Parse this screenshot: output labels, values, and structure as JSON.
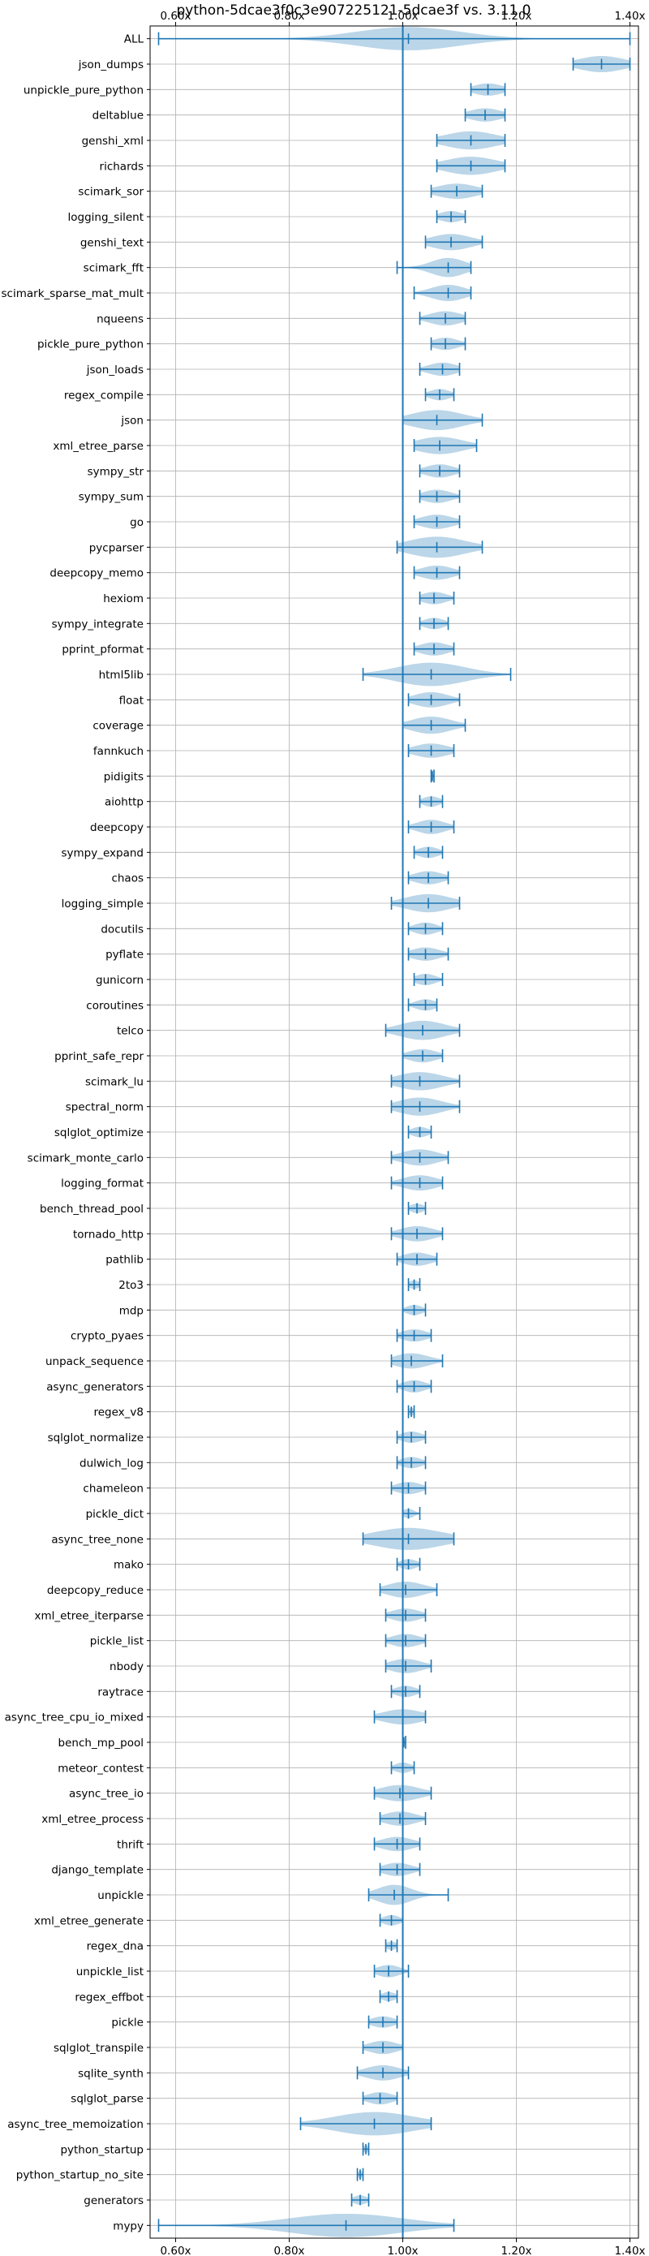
{
  "chart_data": {
    "type": "violin",
    "title": "python-5dcae3f0c3e907225121-5dcae3f vs. 3.11.0",
    "xlim": [
      0.555,
      1.415
    ],
    "xticks": [
      {
        "value": 0.6,
        "label": "0.60x"
      },
      {
        "value": 0.8,
        "label": "0.80x"
      },
      {
        "value": 1.0,
        "label": "1.00x"
      },
      {
        "value": 1.2,
        "label": "1.20x"
      },
      {
        "value": 1.4,
        "label": "1.40x"
      }
    ],
    "reference_line": 1.0,
    "grid": true,
    "colors": {
      "violin": "#1f77b4",
      "violin_fill_opacity": 0.3,
      "axis": "#000000",
      "grid": "#b0b0b0"
    },
    "categories": [
      {
        "name": "ALL",
        "min": 0.57,
        "max": 1.4,
        "median": 1.01,
        "spread": 0.09
      },
      {
        "name": "json_dumps",
        "min": 1.3,
        "max": 1.4,
        "median": 1.35,
        "spread": 0.04
      },
      {
        "name": "unpickle_pure_python",
        "min": 1.12,
        "max": 1.18,
        "median": 1.15,
        "spread": 0.025
      },
      {
        "name": "deltablue",
        "min": 1.11,
        "max": 1.18,
        "median": 1.145,
        "spread": 0.028
      },
      {
        "name": "genshi_xml",
        "min": 1.06,
        "max": 1.18,
        "median": 1.12,
        "spread": 0.045
      },
      {
        "name": "richards",
        "min": 1.06,
        "max": 1.18,
        "median": 1.12,
        "spread": 0.045
      },
      {
        "name": "scimark_sor",
        "min": 1.05,
        "max": 1.14,
        "median": 1.095,
        "spread": 0.035
      },
      {
        "name": "logging_silent",
        "min": 1.06,
        "max": 1.11,
        "median": 1.085,
        "spread": 0.02
      },
      {
        "name": "genshi_text",
        "min": 1.04,
        "max": 1.14,
        "median": 1.085,
        "spread": 0.035
      },
      {
        "name": "scimark_fft",
        "min": 0.99,
        "max": 1.12,
        "median": 1.08,
        "spread": 0.03
      },
      {
        "name": "scimark_sparse_mat_mult",
        "min": 1.02,
        "max": 1.12,
        "median": 1.08,
        "spread": 0.03
      },
      {
        "name": "nqueens",
        "min": 1.03,
        "max": 1.11,
        "median": 1.075,
        "spread": 0.028
      },
      {
        "name": "pickle_pure_python",
        "min": 1.05,
        "max": 1.11,
        "median": 1.075,
        "spread": 0.022
      },
      {
        "name": "json_loads",
        "min": 1.03,
        "max": 1.1,
        "median": 1.07,
        "spread": 0.025
      },
      {
        "name": "regex_compile",
        "min": 1.04,
        "max": 1.09,
        "median": 1.065,
        "spread": 0.018
      },
      {
        "name": "json",
        "min": 1.0,
        "max": 1.14,
        "median": 1.06,
        "spread": 0.045
      },
      {
        "name": "xml_etree_parse",
        "min": 1.02,
        "max": 1.13,
        "median": 1.065,
        "spread": 0.04
      },
      {
        "name": "sympy_str",
        "min": 1.03,
        "max": 1.1,
        "median": 1.065,
        "spread": 0.025
      },
      {
        "name": "sympy_sum",
        "min": 1.03,
        "max": 1.1,
        "median": 1.06,
        "spread": 0.025
      },
      {
        "name": "go",
        "min": 1.02,
        "max": 1.1,
        "median": 1.06,
        "spread": 0.028
      },
      {
        "name": "pycparser",
        "min": 0.99,
        "max": 1.14,
        "median": 1.06,
        "spread": 0.05
      },
      {
        "name": "deepcopy_memo",
        "min": 1.02,
        "max": 1.1,
        "median": 1.06,
        "spread": 0.028
      },
      {
        "name": "hexiom",
        "min": 1.03,
        "max": 1.09,
        "median": 1.055,
        "spread": 0.022
      },
      {
        "name": "sympy_integrate",
        "min": 1.03,
        "max": 1.08,
        "median": 1.055,
        "spread": 0.018
      },
      {
        "name": "pprint_pformat",
        "min": 1.02,
        "max": 1.09,
        "median": 1.055,
        "spread": 0.025
      },
      {
        "name": "html5lib",
        "min": 0.93,
        "max": 1.19,
        "median": 1.05,
        "spread": 0.06
      },
      {
        "name": "float",
        "min": 1.01,
        "max": 1.1,
        "median": 1.05,
        "spread": 0.03
      },
      {
        "name": "coverage",
        "min": 1.0,
        "max": 1.11,
        "median": 1.05,
        "spread": 0.035
      },
      {
        "name": "fannkuch",
        "min": 1.01,
        "max": 1.09,
        "median": 1.05,
        "spread": 0.03
      },
      {
        "name": "pidigits",
        "min": 1.05,
        "max": 1.055,
        "median": 1.052,
        "spread": 0.004
      },
      {
        "name": "aiohttp",
        "min": 1.03,
        "max": 1.07,
        "median": 1.05,
        "spread": 0.015
      },
      {
        "name": "deepcopy",
        "min": 1.01,
        "max": 1.09,
        "median": 1.05,
        "spread": 0.025
      },
      {
        "name": "sympy_expand",
        "min": 1.02,
        "max": 1.07,
        "median": 1.045,
        "spread": 0.018
      },
      {
        "name": "chaos",
        "min": 1.01,
        "max": 1.08,
        "median": 1.045,
        "spread": 0.025
      },
      {
        "name": "logging_simple",
        "min": 0.98,
        "max": 1.1,
        "median": 1.045,
        "spread": 0.04
      },
      {
        "name": "docutils",
        "min": 1.01,
        "max": 1.07,
        "median": 1.04,
        "spread": 0.02
      },
      {
        "name": "pyflate",
        "min": 1.01,
        "max": 1.08,
        "median": 1.04,
        "spread": 0.025
      },
      {
        "name": "gunicorn",
        "min": 1.02,
        "max": 1.07,
        "median": 1.04,
        "spread": 0.018
      },
      {
        "name": "coroutines",
        "min": 1.01,
        "max": 1.06,
        "median": 1.04,
        "spread": 0.018
      },
      {
        "name": "telco",
        "min": 0.97,
        "max": 1.1,
        "median": 1.035,
        "spread": 0.04
      },
      {
        "name": "pprint_safe_repr",
        "min": 1.0,
        "max": 1.07,
        "median": 1.035,
        "spread": 0.025
      },
      {
        "name": "scimark_lu",
        "min": 0.98,
        "max": 1.1,
        "median": 1.03,
        "spread": 0.04
      },
      {
        "name": "spectral_norm",
        "min": 0.98,
        "max": 1.1,
        "median": 1.03,
        "spread": 0.038
      },
      {
        "name": "sqlglot_optimize",
        "min": 1.01,
        "max": 1.05,
        "median": 1.03,
        "spread": 0.015
      },
      {
        "name": "scimark_monte_carlo",
        "min": 0.98,
        "max": 1.08,
        "median": 1.03,
        "spread": 0.032
      },
      {
        "name": "logging_format",
        "min": 0.98,
        "max": 1.07,
        "median": 1.03,
        "spread": 0.03
      },
      {
        "name": "bench_thread_pool",
        "min": 1.01,
        "max": 1.04,
        "median": 1.025,
        "spread": 0.012
      },
      {
        "name": "tornado_http",
        "min": 0.98,
        "max": 1.07,
        "median": 1.025,
        "spread": 0.03
      },
      {
        "name": "pathlib",
        "min": 0.99,
        "max": 1.06,
        "median": 1.025,
        "spread": 0.025
      },
      {
        "name": "2to3",
        "min": 1.01,
        "max": 1.03,
        "median": 1.02,
        "spread": 0.01
      },
      {
        "name": "mdp",
        "min": 1.0,
        "max": 1.04,
        "median": 1.02,
        "spread": 0.014
      },
      {
        "name": "crypto_pyaes",
        "min": 0.99,
        "max": 1.05,
        "median": 1.02,
        "spread": 0.022
      },
      {
        "name": "unpack_sequence",
        "min": 0.98,
        "max": 1.07,
        "median": 1.015,
        "spread": 0.03
      },
      {
        "name": "async_generators",
        "min": 0.99,
        "max": 1.05,
        "median": 1.02,
        "spread": 0.02
      },
      {
        "name": "regex_v8",
        "min": 1.01,
        "max": 1.02,
        "median": 1.015,
        "spread": 0.008
      },
      {
        "name": "sqlglot_normalize",
        "min": 0.99,
        "max": 1.04,
        "median": 1.015,
        "spread": 0.018
      },
      {
        "name": "dulwich_log",
        "min": 0.99,
        "max": 1.04,
        "median": 1.015,
        "spread": 0.018
      },
      {
        "name": "chameleon",
        "min": 0.98,
        "max": 1.04,
        "median": 1.01,
        "spread": 0.022
      },
      {
        "name": "pickle_dict",
        "min": 1.0,
        "max": 1.03,
        "median": 1.01,
        "spread": 0.01
      },
      {
        "name": "async_tree_none",
        "min": 0.93,
        "max": 1.09,
        "median": 1.01,
        "spread": 0.06
      },
      {
        "name": "mako",
        "min": 0.99,
        "max": 1.03,
        "median": 1.01,
        "spread": 0.015
      },
      {
        "name": "deepcopy_reduce",
        "min": 0.96,
        "max": 1.06,
        "median": 1.005,
        "spread": 0.032
      },
      {
        "name": "xml_etree_iterparse",
        "min": 0.97,
        "max": 1.04,
        "median": 1.005,
        "spread": 0.025
      },
      {
        "name": "pickle_list",
        "min": 0.97,
        "max": 1.04,
        "median": 1.005,
        "spread": 0.025
      },
      {
        "name": "nbody",
        "min": 0.97,
        "max": 1.05,
        "median": 1.005,
        "spread": 0.028
      },
      {
        "name": "raytrace",
        "min": 0.98,
        "max": 1.03,
        "median": 1.005,
        "spread": 0.018
      },
      {
        "name": "async_tree_cpu_io_mixed",
        "min": 0.95,
        "max": 1.04,
        "median": 1.0,
        "spread": 0.035
      },
      {
        "name": "bench_mp_pool",
        "min": 1.0,
        "max": 1.005,
        "median": 1.002,
        "spread": 0.003
      },
      {
        "name": "meteor_contest",
        "min": 0.98,
        "max": 1.02,
        "median": 1.0,
        "spread": 0.015
      },
      {
        "name": "async_tree_io",
        "min": 0.95,
        "max": 1.05,
        "median": 0.995,
        "spread": 0.035
      },
      {
        "name": "xml_etree_process",
        "min": 0.96,
        "max": 1.04,
        "median": 0.995,
        "spread": 0.028
      },
      {
        "name": "thrift",
        "min": 0.95,
        "max": 1.03,
        "median": 0.99,
        "spread": 0.028
      },
      {
        "name": "django_template",
        "min": 0.96,
        "max": 1.03,
        "median": 0.99,
        "spread": 0.025
      },
      {
        "name": "unpickle",
        "min": 0.94,
        "max": 1.08,
        "median": 0.985,
        "spread": 0.03
      },
      {
        "name": "xml_etree_generate",
        "min": 0.96,
        "max": 1.0,
        "median": 0.98,
        "spread": 0.015
      },
      {
        "name": "regex_dna",
        "min": 0.97,
        "max": 0.99,
        "median": 0.98,
        "spread": 0.01
      },
      {
        "name": "unpickle_list",
        "min": 0.95,
        "max": 1.01,
        "median": 0.975,
        "spread": 0.02
      },
      {
        "name": "regex_effbot",
        "min": 0.96,
        "max": 0.99,
        "median": 0.975,
        "spread": 0.012
      },
      {
        "name": "pickle",
        "min": 0.94,
        "max": 0.99,
        "median": 0.965,
        "spread": 0.02
      },
      {
        "name": "sqlglot_transpile",
        "min": 0.93,
        "max": 1.0,
        "median": 0.965,
        "spread": 0.025
      },
      {
        "name": "sqlite_synth",
        "min": 0.92,
        "max": 1.01,
        "median": 0.965,
        "spread": 0.03
      },
      {
        "name": "sqlglot_parse",
        "min": 0.93,
        "max": 0.99,
        "median": 0.96,
        "spread": 0.022
      },
      {
        "name": "async_tree_memoization",
        "min": 0.82,
        "max": 1.05,
        "median": 0.95,
        "spread": 0.07
      },
      {
        "name": "python_startup",
        "min": 0.93,
        "max": 0.94,
        "median": 0.935,
        "spread": 0.006
      },
      {
        "name": "python_startup_no_site",
        "min": 0.92,
        "max": 0.93,
        "median": 0.925,
        "spread": 0.005
      },
      {
        "name": "generators",
        "min": 0.91,
        "max": 0.94,
        "median": 0.925,
        "spread": 0.012
      },
      {
        "name": "mypy",
        "min": 0.57,
        "max": 1.09,
        "median": 0.9,
        "spread": 0.1
      }
    ]
  }
}
